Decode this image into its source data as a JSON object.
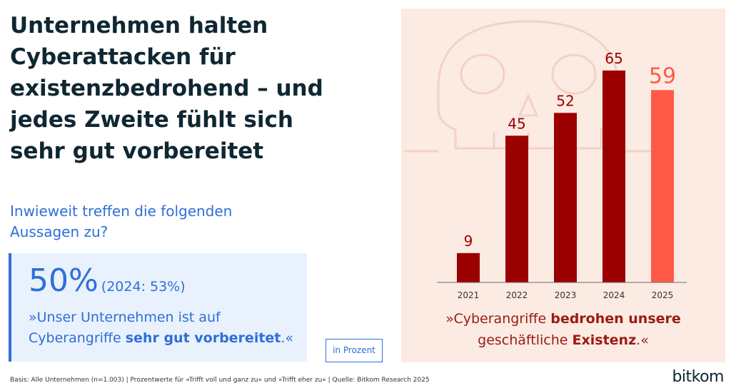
{
  "headline": {
    "title": "Unternehmen halten Cyberattacken für existenzbedrohend – und jedes Zweite fühlt sich sehr gut vorbereitet"
  },
  "question": "Inwieweit treffen die folgenden Aussagen zu?",
  "stat": {
    "value": "50%",
    "note": "(2024: 53%)",
    "quote_pre": "»Unser Unternehmen ist auf Cyberangriffe ",
    "quote_bold": "sehr gut vorbereitet",
    "quote_post": ".«"
  },
  "unit_label": "in Prozent",
  "chart_quote": {
    "pre": "»Cyberangriffe ",
    "bold1": "bedrohen unsere",
    "mid": "geschäftliche ",
    "bold2": "Existenz",
    "post": ".«"
  },
  "footnote": "Basis: Alle Unternehmen (n=1.003) | Prozentwerte für »Trifft voll und ganz zu« und »Trifft eher zu« | Quelle: Bitkom Research 2025",
  "logo": "bitkom",
  "colors": {
    "bar_past": "#9b0000",
    "bar_current": "#ff5a47",
    "panel_bg": "#fbebe3",
    "accent_blue": "#2f6fd6",
    "title": "#0f2733"
  },
  "decoration_icon": "skull-icon",
  "chart_data": {
    "type": "bar",
    "categories": [
      "2021",
      "2022",
      "2023",
      "2024",
      "2025"
    ],
    "values": [
      9,
      45,
      52,
      65,
      59
    ],
    "highlight_index": 4,
    "title": "",
    "xlabel": "",
    "ylabel": "",
    "ylim": [
      0,
      70
    ],
    "grid": false,
    "legend": "none"
  }
}
